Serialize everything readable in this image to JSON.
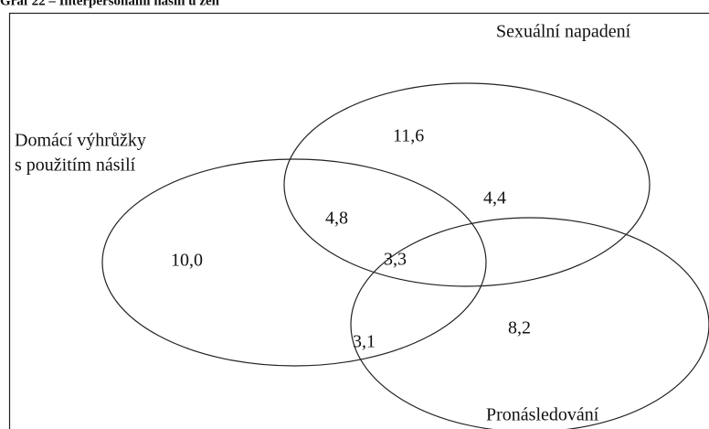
{
  "title": "Graf 22 – Interpersonální násilí u žen",
  "sets": [
    {
      "name": "Sexuální napadení"
    },
    {
      "name_lines": [
        "Domácí výhrůžky",
        "s použitím násilí"
      ]
    },
    {
      "name": "Pronásledování"
    }
  ],
  "regions": [
    {
      "label": "11,6"
    },
    {
      "label": "4,8"
    },
    {
      "label": "4,4"
    },
    {
      "label": "10,0"
    },
    {
      "label": "3,3"
    },
    {
      "label": "3,1"
    },
    {
      "label": "8,2"
    }
  ]
}
